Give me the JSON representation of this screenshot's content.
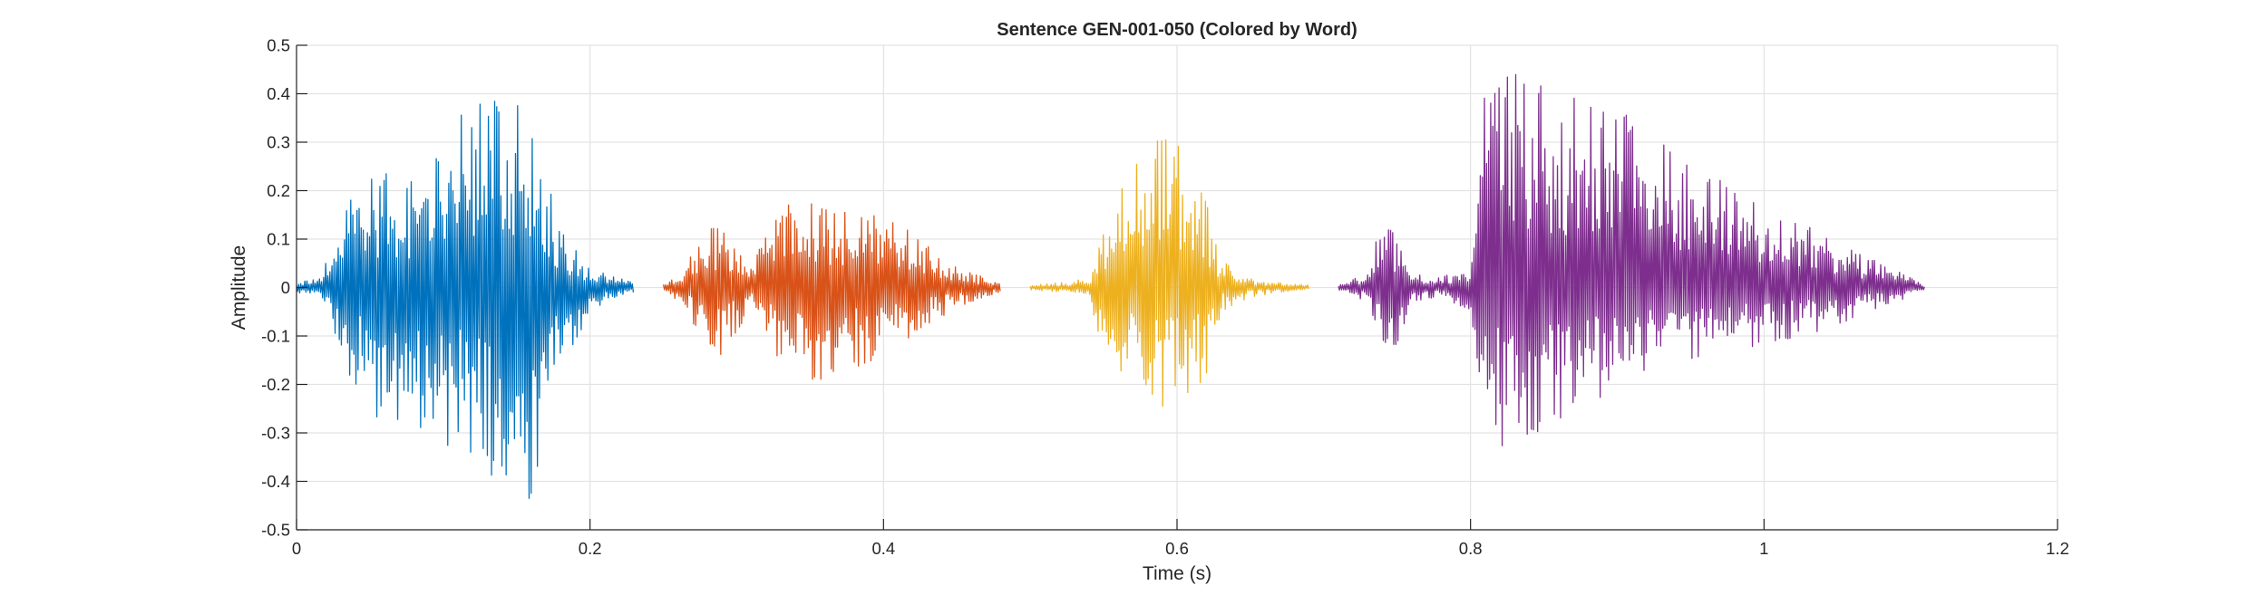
{
  "chart_data": {
    "type": "line",
    "title": "Sentence GEN-001-050 (Colored by Word)",
    "xlabel": "Time (s)",
    "ylabel": "Amplitude",
    "xlim": [
      0,
      1.2
    ],
    "ylim": [
      -0.5,
      0.5
    ],
    "xticks": [
      0,
      0.2,
      0.4,
      0.6,
      0.8,
      1,
      1.2
    ],
    "xtick_labels": [
      "0",
      "0.2",
      "0.4",
      "0.6",
      "0.8",
      "1",
      "1.2"
    ],
    "yticks": [
      -0.5,
      -0.4,
      -0.3,
      -0.2,
      -0.1,
      0,
      0.1,
      0.2,
      0.3,
      0.4,
      0.5
    ],
    "ytick_labels": [
      "-0.5",
      "-0.4",
      "-0.3",
      "-0.2",
      "-0.1",
      "0",
      "0.1",
      "0.2",
      "0.3",
      "0.4",
      "0.5"
    ],
    "grid": true,
    "series": [
      {
        "color": "#0072BD",
        "t_start": 0.0,
        "t_end": 0.23,
        "envelope": {
          "t": [
            0.0,
            0.015,
            0.02,
            0.03,
            0.04,
            0.06,
            0.08,
            0.1,
            0.12,
            0.14,
            0.155,
            0.165,
            0.18,
            0.2,
            0.23
          ],
          "max": [
            0.01,
            0.02,
            0.07,
            0.12,
            0.24,
            0.24,
            0.22,
            0.32,
            0.38,
            0.41,
            0.4,
            0.33,
            0.12,
            0.04,
            0.01
          ],
          "min": [
            -0.01,
            -0.02,
            -0.07,
            -0.12,
            -0.22,
            -0.29,
            -0.3,
            -0.32,
            -0.36,
            -0.43,
            -0.47,
            -0.4,
            -0.18,
            -0.05,
            -0.01
          ]
        }
      },
      {
        "color": "#D95319",
        "t_start": 0.25,
        "t_end": 0.48,
        "envelope": {
          "t": [
            0.25,
            0.26,
            0.28,
            0.29,
            0.31,
            0.32,
            0.34,
            0.36,
            0.38,
            0.4,
            0.42,
            0.44,
            0.46,
            0.48
          ],
          "max": [
            0.01,
            0.03,
            0.12,
            0.13,
            0.04,
            0.12,
            0.19,
            0.17,
            0.15,
            0.17,
            0.12,
            0.06,
            0.03,
            0.01
          ],
          "min": [
            -0.01,
            -0.03,
            -0.12,
            -0.15,
            -0.04,
            -0.12,
            -0.19,
            -0.19,
            -0.17,
            -0.14,
            -0.1,
            -0.06,
            -0.03,
            -0.01
          ]
        }
      },
      {
        "color": "#EDB120",
        "t_start": 0.5,
        "t_end": 0.69,
        "envelope": {
          "t": [
            0.5,
            0.52,
            0.54,
            0.55,
            0.56,
            0.58,
            0.59,
            0.605,
            0.62,
            0.63,
            0.65,
            0.67,
            0.69
          ],
          "max": [
            0.005,
            0.01,
            0.02,
            0.12,
            0.22,
            0.29,
            0.32,
            0.3,
            0.18,
            0.06,
            0.02,
            0.01,
            0.005
          ],
          "min": [
            -0.005,
            -0.01,
            -0.02,
            -0.15,
            -0.2,
            -0.22,
            -0.25,
            -0.22,
            -0.2,
            -0.05,
            -0.02,
            -0.01,
            -0.005
          ]
        }
      },
      {
        "color": "#7E2F8E",
        "t_start": 0.71,
        "t_end": 1.11,
        "envelope": {
          "t": [
            0.71,
            0.73,
            0.74,
            0.75,
            0.76,
            0.78,
            0.8,
            0.81,
            0.82,
            0.83,
            0.86,
            0.9,
            0.95,
            1.0,
            1.05,
            1.08,
            1.1,
            1.11
          ],
          "max": [
            0.005,
            0.03,
            0.15,
            0.1,
            0.03,
            0.02,
            0.05,
            0.44,
            0.46,
            0.45,
            0.4,
            0.37,
            0.26,
            0.17,
            0.1,
            0.05,
            0.02,
            0.005
          ],
          "min": [
            -0.005,
            -0.03,
            -0.12,
            -0.12,
            -0.03,
            -0.02,
            -0.05,
            -0.28,
            -0.33,
            -0.32,
            -0.28,
            -0.21,
            -0.15,
            -0.12,
            -0.08,
            -0.04,
            -0.02,
            -0.005
          ]
        }
      }
    ]
  }
}
